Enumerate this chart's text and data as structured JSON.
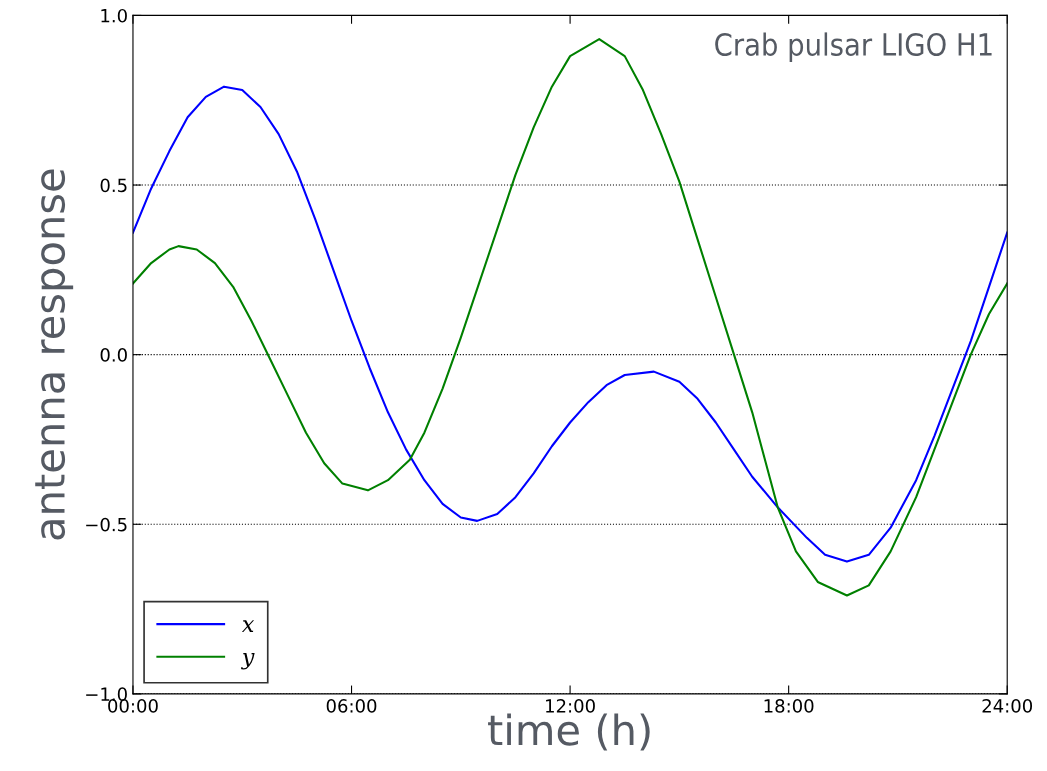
{
  "chart_data": {
    "type": "line",
    "xlabel": "time (h)",
    "ylabel": "antenna response",
    "annotations": [
      "Crab pulsar LIGO H1"
    ],
    "xlim": [
      0,
      24
    ],
    "ylim": [
      -1.0,
      1.0
    ],
    "xticks": [
      {
        "value": 0,
        "label": "00:00"
      },
      {
        "value": 6,
        "label": "06:00"
      },
      {
        "value": 12,
        "label": "12:00"
      },
      {
        "value": 18,
        "label": "18:00"
      },
      {
        "value": 24,
        "label": "24:00"
      }
    ],
    "yticks": [
      {
        "value": -1.0,
        "label": "−1.0"
      },
      {
        "value": -0.5,
        "label": "−0.5"
      },
      {
        "value": 0.0,
        "label": "0.0"
      },
      {
        "value": 0.5,
        "label": "0.5"
      },
      {
        "value": 1.0,
        "label": "1.0"
      }
    ],
    "grid": "y",
    "legend": "bottom left",
    "marker": "none",
    "line_style": "solid",
    "series": [
      {
        "name": "x",
        "color": "#0000ff",
        "x": [
          0,
          0.5,
          1,
          1.5,
          2,
          2.5,
          3,
          3.5,
          4,
          4.5,
          5,
          5.5,
          6,
          6.5,
          7,
          7.5,
          8,
          8.5,
          9,
          9.45,
          10,
          10.5,
          11,
          11.5,
          12,
          12.5,
          13,
          13.5,
          14.3,
          15,
          15.5,
          16,
          16.5,
          17,
          17.7,
          18.5,
          19,
          19.6,
          20.2,
          20.8,
          21.5,
          22,
          22.5,
          23,
          23.5,
          24
        ],
        "values": [
          0.36,
          0.49,
          0.6,
          0.7,
          0.76,
          0.79,
          0.78,
          0.73,
          0.65,
          0.54,
          0.4,
          0.25,
          0.1,
          -0.04,
          -0.17,
          -0.28,
          -0.37,
          -0.44,
          -0.48,
          -0.49,
          -0.47,
          -0.42,
          -0.35,
          -0.27,
          -0.2,
          -0.14,
          -0.09,
          -0.06,
          -0.05,
          -0.08,
          -0.13,
          -0.2,
          -0.28,
          -0.36,
          -0.45,
          -0.54,
          -0.59,
          -0.61,
          -0.59,
          -0.51,
          -0.37,
          -0.24,
          -0.1,
          0.04,
          0.2,
          0.36
        ]
      },
      {
        "name": "y",
        "color": "#008000",
        "x": [
          0,
          0.5,
          1,
          1.25,
          1.75,
          2.25,
          2.75,
          3.25,
          3.75,
          4.25,
          4.75,
          5.25,
          5.75,
          6.45,
          7,
          7.6,
          8,
          8.5,
          9,
          9.5,
          10,
          10.5,
          11,
          11.5,
          12,
          12.8,
          13.5,
          14,
          14.5,
          15,
          15.5,
          16,
          16.5,
          17,
          17.7,
          18.2,
          18.8,
          19.6,
          20.2,
          20.8,
          21.5,
          22,
          22.5,
          23,
          23.5,
          24
        ],
        "values": [
          0.21,
          0.27,
          0.31,
          0.32,
          0.31,
          0.27,
          0.2,
          0.1,
          -0.01,
          -0.12,
          -0.23,
          -0.32,
          -0.38,
          -0.4,
          -0.37,
          -0.31,
          -0.23,
          -0.1,
          0.05,
          0.21,
          0.37,
          0.53,
          0.67,
          0.79,
          0.88,
          0.93,
          0.88,
          0.78,
          0.65,
          0.51,
          0.34,
          0.17,
          0.0,
          -0.17,
          -0.45,
          -0.58,
          -0.67,
          -0.71,
          -0.68,
          -0.58,
          -0.42,
          -0.28,
          -0.14,
          0.0,
          0.12,
          0.21
        ]
      }
    ]
  }
}
